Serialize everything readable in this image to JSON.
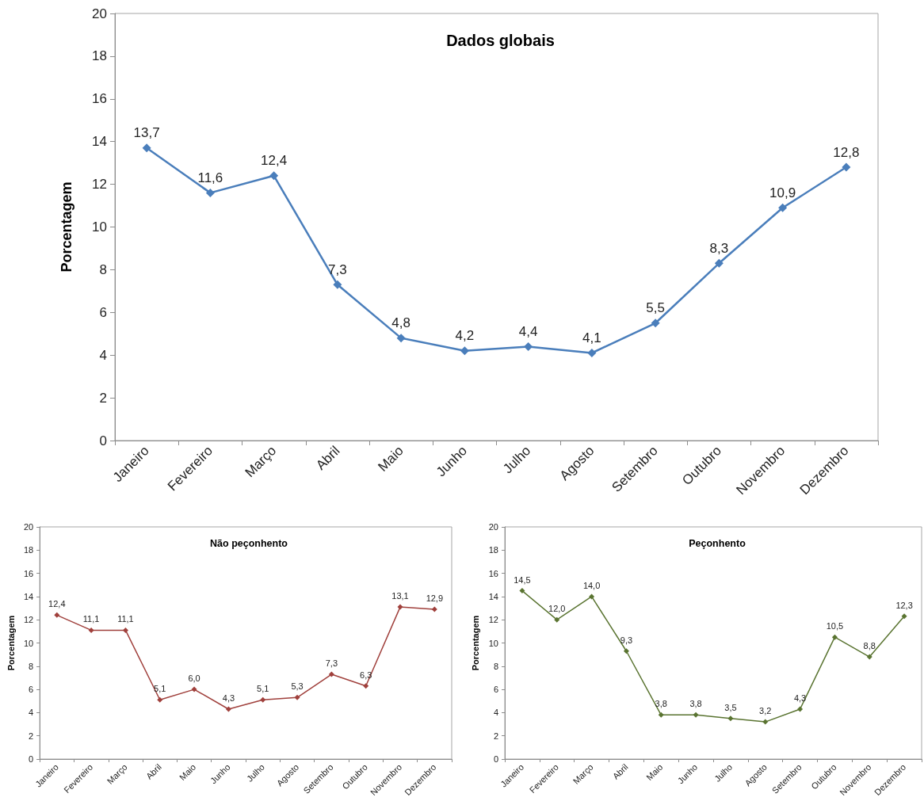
{
  "chart_data": [
    {
      "type": "line",
      "title": "Dados globais",
      "ylabel": "Porcentagem",
      "categories": [
        "Janeiro",
        "Fevereiro",
        "Março",
        "Abril",
        "Maio",
        "Junho",
        "Julho",
        "Agosto",
        "Setembro",
        "Outubro",
        "Novembro",
        "Dezembro"
      ],
      "values": [
        13.7,
        11.6,
        12.4,
        7.3,
        4.8,
        4.2,
        4.4,
        4.1,
        5.5,
        8.3,
        10.9,
        12.8
      ],
      "value_labels": [
        "13,7",
        "11,6",
        "12,4",
        "7,3",
        "4,8",
        "4,2",
        "4,4",
        "4,1",
        "5,5",
        "8,3",
        "10,9",
        "12,8"
      ],
      "color": "#4a7ebb",
      "marker": "diamond",
      "line_style": "solid",
      "ylim": [
        0,
        20
      ],
      "yticks": [
        0,
        2,
        4,
        6,
        8,
        10,
        12,
        14,
        16,
        18,
        20
      ]
    },
    {
      "type": "line",
      "title": "Não peçonhento",
      "ylabel": "Porcentagem",
      "categories": [
        "Janeiro",
        "Fevereiro",
        "Março",
        "Abril",
        "Maio",
        "Junho",
        "Julho",
        "Agosto",
        "Setembro",
        "Outubro",
        "Novembro",
        "Dezembro"
      ],
      "values": [
        12.4,
        11.1,
        11.1,
        5.1,
        6.0,
        4.3,
        5.1,
        5.3,
        7.3,
        6.3,
        13.1,
        12.9
      ],
      "value_labels": [
        "12,4",
        "11,1",
        "11,1",
        "5,1",
        "6,0",
        "4,3",
        "5,1",
        "5,3",
        "7,3",
        "6,3",
        "13,1",
        "12,9"
      ],
      "color": "#a0403c",
      "marker": "diamond",
      "line_style": "solid",
      "ylim": [
        0,
        20
      ],
      "yticks": [
        0,
        2,
        4,
        6,
        8,
        10,
        12,
        14,
        16,
        18,
        20
      ]
    },
    {
      "type": "line",
      "title": "Peçonhento",
      "ylabel": "Porcentagem",
      "categories": [
        "Janeiro",
        "Fevereiro",
        "Março",
        "Abril",
        "Maio",
        "Junho",
        "Julho",
        "Agosto",
        "Setembro",
        "Outubro",
        "Novembro",
        "Dezembro"
      ],
      "values": [
        14.5,
        12.0,
        14.0,
        9.3,
        3.8,
        3.8,
        3.5,
        3.2,
        4.3,
        10.5,
        8.8,
        12.3
      ],
      "value_labels": [
        "14,5",
        "12,0",
        "14,0",
        "9,3",
        "3,8",
        "3,8",
        "3,5",
        "3,2",
        "4,3",
        "10,5",
        "8,8",
        "12,3"
      ],
      "color": "#5a7431",
      "marker": "diamond",
      "line_style": "solid",
      "ylim": [
        0,
        20
      ],
      "yticks": [
        0,
        2,
        4,
        6,
        8,
        10,
        12,
        14,
        16,
        18,
        20
      ]
    }
  ]
}
